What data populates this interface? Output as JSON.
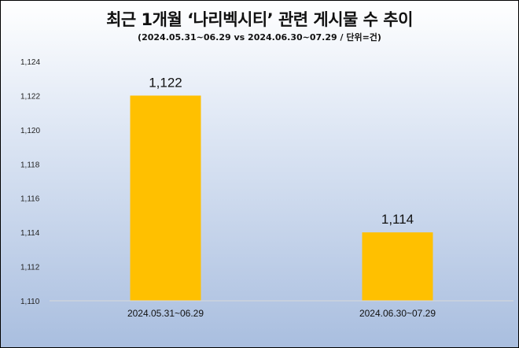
{
  "chart_data": {
    "type": "bar",
    "title": "최근 1개월 ‘나리벡시티’ 관련 게시물 수 추이",
    "subtitle": "(2024.05.31~06.29 vs 2024.06.30~07.29 / 단위=건)",
    "categories": [
      "2024.05.31~06.29",
      "2024.06.30~07.29"
    ],
    "values": [
      1122,
      1114
    ],
    "data_labels": [
      "1,122",
      "1,114"
    ],
    "ylim": [
      1110,
      1124
    ],
    "yticks": [
      1110,
      1112,
      1114,
      1116,
      1118,
      1120,
      1122,
      1124
    ],
    "ytick_labels": [
      "1,110",
      "1,112",
      "1,114",
      "1,116",
      "1,118",
      "1,120",
      "1,122",
      "1,124"
    ],
    "xlabel": "",
    "ylabel": "",
    "grid": false,
    "bar_color": "#FFC000",
    "axis_color": "#D9D9D9"
  }
}
